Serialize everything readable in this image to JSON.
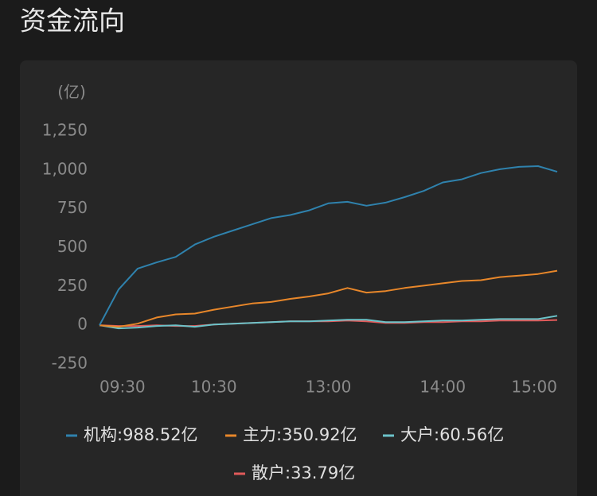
{
  "chart_data": {
    "type": "line",
    "title": "资金流向",
    "y_label": "(亿)",
    "x": [
      "09:30",
      "09:40",
      "09:50",
      "10:00",
      "10:10",
      "10:20",
      "10:30",
      "10:40",
      "10:50",
      "11:00",
      "11:10",
      "11:20",
      "11:30",
      "13:10",
      "13:20",
      "13:30",
      "13:40",
      "13:50",
      "14:00",
      "14:10",
      "14:20",
      "14:30",
      "14:40",
      "14:50",
      "15:00"
    ],
    "xticks": [
      "09:30",
      "10:30",
      "13:00",
      "14:00",
      "15:00"
    ],
    "ylim": [
      -250,
      1250
    ],
    "yticks": [
      -250,
      0,
      {
        "value": 250,
        "label": "250"
      },
      {
        "value": 500,
        "label": "500"
      },
      {
        "value": 750,
        "label": "750"
      },
      {
        "value": 1000,
        "label": "1,000"
      },
      {
        "value": 1250,
        "label": "1,250"
      }
    ],
    "series": [
      {
        "name": "机构:988.52亿",
        "color": "#2f82ad",
        "values": [
          0,
          230,
          365,
          405,
          440,
          520,
          570,
          610,
          650,
          690,
          710,
          740,
          785,
          795,
          770,
          790,
          825,
          865,
          920,
          940,
          980,
          1005,
          1020,
          1025,
          988.52
        ]
      },
      {
        "name": "主力:350.92亿",
        "color": "#e8872a",
        "values": [
          0,
          -10,
          10,
          50,
          70,
          75,
          100,
          120,
          140,
          150,
          170,
          185,
          205,
          240,
          210,
          220,
          240,
          255,
          270,
          285,
          290,
          310,
          320,
          330,
          350.92
        ]
      },
      {
        "name": "大户:60.56亿",
        "color": "#6cc3c9",
        "values": [
          0,
          -20,
          -15,
          -5,
          0,
          -10,
          5,
          10,
          15,
          20,
          25,
          25,
          30,
          35,
          35,
          20,
          20,
          25,
          30,
          30,
          35,
          40,
          40,
          40,
          60.56
        ]
      },
      {
        "name": "散户:33.79亿",
        "color": "#e05a5a",
        "values": [
          0,
          -5,
          -5,
          0,
          -5,
          -5,
          5,
          10,
          15,
          20,
          25,
          25,
          25,
          30,
          25,
          15,
          15,
          20,
          20,
          25,
          25,
          30,
          30,
          30,
          33.79
        ]
      }
    ]
  }
}
